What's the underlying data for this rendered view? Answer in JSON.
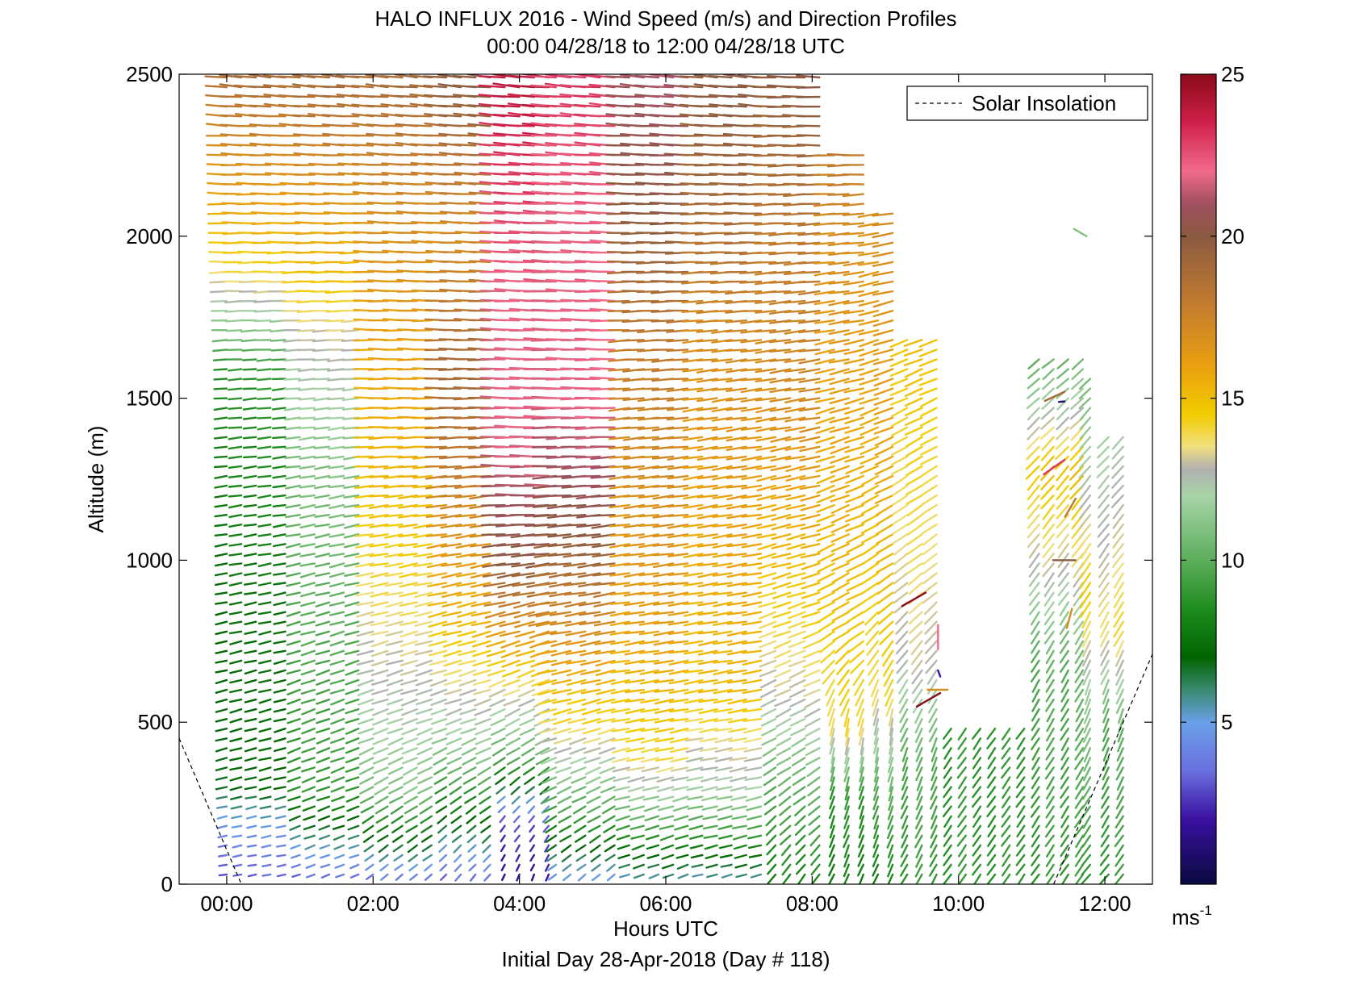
{
  "chart_data": {
    "type": "wind_barb_profile",
    "title": "HALO INFLUX 2016 - Wind Speed (m/s) and Direction Profiles",
    "subtitle": "00:00 04/28/18 to 12:00 04/28/18  UTC",
    "xlabel": "Hours UTC",
    "xlabel2": "Initial Day 28-Apr-2018 (Day # 118)",
    "ylabel": "Altitude (m)",
    "xlim": [
      -0.65,
      12.65
    ],
    "ylim": [
      0,
      2500
    ],
    "x_ticks": [
      {
        "value": 0,
        "label": "00:00"
      },
      {
        "value": 2,
        "label": "02:00"
      },
      {
        "value": 4,
        "label": "04:00"
      },
      {
        "value": 6,
        "label": "06:00"
      },
      {
        "value": 8,
        "label": "08:00"
      },
      {
        "value": 10,
        "label": "10:00"
      },
      {
        "value": 12,
        "label": "12:00"
      }
    ],
    "y_ticks": [
      0,
      500,
      1000,
      1500,
      2000,
      2500
    ],
    "colorbar": {
      "range": [
        0,
        25
      ],
      "ticks": [
        5,
        10,
        15,
        20,
        25
      ],
      "unit_label": "ms",
      "unit_exponent": "-1",
      "stops": [
        {
          "v": 0,
          "color": "#0a0a40"
        },
        {
          "v": 2,
          "color": "#3a10a0"
        },
        {
          "v": 3.5,
          "color": "#6a70e0"
        },
        {
          "v": 5,
          "color": "#6aa0e8"
        },
        {
          "v": 6,
          "color": "#3a8a70"
        },
        {
          "v": 7,
          "color": "#006400"
        },
        {
          "v": 8.5,
          "color": "#1e8c1e"
        },
        {
          "v": 10,
          "color": "#5cae5c"
        },
        {
          "v": 12,
          "color": "#a8d4a8"
        },
        {
          "v": 12.8,
          "color": "#b0b0b0"
        },
        {
          "v": 13.5,
          "color": "#f0e080"
        },
        {
          "v": 14.5,
          "color": "#f2cc00"
        },
        {
          "v": 16,
          "color": "#eaa010"
        },
        {
          "v": 18,
          "color": "#c07a30"
        },
        {
          "v": 20,
          "color": "#8a5a40"
        },
        {
          "v": 21,
          "color": "#a05060"
        },
        {
          "v": 22,
          "color": "#f06a8a"
        },
        {
          "v": 23.5,
          "color": "#d0204a"
        },
        {
          "v": 25,
          "color": "#8a0a1a"
        }
      ]
    },
    "legend": {
      "position": "top-right",
      "entries": [
        {
          "label": "Solar Insolation",
          "style": "dashed",
          "color": "#000000"
        }
      ]
    },
    "series": [
      {
        "name": "Solar Insolation",
        "x": [
          -0.65,
          0.2
        ],
        "y": [
          450,
          0
        ]
      },
      {
        "name": "Solar Insolation",
        "x": [
          11.3,
          12.65
        ],
        "y": [
          0,
          710
        ]
      }
    ],
    "profiles_note": "Wind barbs plotted at ~10 minute intervals every 30 m; length/direction show wind, color shows speed (m/s).",
    "profiles": [
      {
        "t": 0.0,
        "top": 2500,
        "speed": [
          [
            0,
            3
          ],
          [
            60,
            3.5
          ],
          [
            200,
            5
          ],
          [
            300,
            7
          ],
          [
            900,
            7.5
          ],
          [
            1600,
            9
          ],
          [
            1700,
            11
          ],
          [
            1900,
            14
          ],
          [
            2100,
            16
          ],
          [
            2400,
            18
          ],
          [
            2500,
            19
          ]
        ],
        "dir": [
          [
            0,
            260
          ],
          [
            500,
            255
          ],
          [
            1500,
            265
          ],
          [
            2500,
            275
          ]
        ]
      },
      {
        "t": 1.0,
        "top": 2500,
        "speed": [
          [
            0,
            3
          ],
          [
            100,
            5
          ],
          [
            300,
            9
          ],
          [
            900,
            10
          ],
          [
            1300,
            11
          ],
          [
            1500,
            12
          ],
          [
            1700,
            13
          ],
          [
            1900,
            15
          ],
          [
            2200,
            17
          ],
          [
            2500,
            19
          ]
        ],
        "dir": [
          [
            0,
            250
          ],
          [
            500,
            250
          ],
          [
            1500,
            265
          ],
          [
            2500,
            275
          ]
        ]
      },
      {
        "t": 2.0,
        "top": 2500,
        "speed": [
          [
            0,
            3
          ],
          [
            100,
            6
          ],
          [
            300,
            11
          ],
          [
            700,
            13
          ],
          [
            1200,
            15
          ],
          [
            1700,
            16
          ],
          [
            2100,
            17
          ],
          [
            2500,
            19
          ]
        ],
        "dir": [
          [
            0,
            230
          ],
          [
            500,
            250
          ],
          [
            1500,
            270
          ],
          [
            2500,
            275
          ]
        ]
      },
      {
        "t": 3.0,
        "top": 2500,
        "speed": [
          [
            0,
            3
          ],
          [
            150,
            6
          ],
          [
            400,
            11
          ],
          [
            800,
            15
          ],
          [
            1300,
            18
          ],
          [
            1600,
            19
          ],
          [
            2000,
            17
          ],
          [
            2500,
            20
          ]
        ],
        "dir": [
          [
            0,
            220
          ],
          [
            500,
            250
          ],
          [
            1500,
            270
          ],
          [
            2500,
            275
          ]
        ]
      },
      {
        "t": 3.8,
        "top": 2500,
        "speed": [
          [
            0,
            1.5
          ],
          [
            200,
            3
          ],
          [
            400,
            10
          ],
          [
            700,
            15
          ],
          [
            1000,
            20
          ],
          [
            1400,
            22
          ],
          [
            1800,
            22
          ],
          [
            2200,
            23
          ],
          [
            2500,
            24
          ]
        ],
        "dir": [
          [
            0,
            200
          ],
          [
            400,
            240
          ],
          [
            1200,
            270
          ],
          [
            2500,
            275
          ]
        ]
      },
      {
        "t": 4.5,
        "top": 2500,
        "speed": [
          [
            0,
            4
          ],
          [
            200,
            9
          ],
          [
            500,
            14
          ],
          [
            800,
            17
          ],
          [
            1100,
            20
          ],
          [
            1500,
            22
          ],
          [
            2000,
            22
          ],
          [
            2500,
            23
          ]
        ],
        "dir": [
          [
            0,
            230
          ],
          [
            500,
            255
          ],
          [
            1500,
            270
          ],
          [
            2500,
            275
          ]
        ]
      },
      {
        "t": 5.5,
        "top": 2500,
        "speed": [
          [
            0,
            5
          ],
          [
            200,
            10
          ],
          [
            400,
            14
          ],
          [
            800,
            16
          ],
          [
            1300,
            17
          ],
          [
            1700,
            18
          ],
          [
            2100,
            20
          ],
          [
            2500,
            21
          ]
        ],
        "dir": [
          [
            0,
            250
          ],
          [
            500,
            260
          ],
          [
            1500,
            265
          ],
          [
            2500,
            275
          ]
        ]
      },
      {
        "t": 6.5,
        "top": 2500,
        "speed": [
          [
            0,
            5
          ],
          [
            150,
            9
          ],
          [
            300,
            12
          ],
          [
            600,
            15
          ],
          [
            1200,
            16
          ],
          [
            1700,
            17
          ],
          [
            2100,
            19
          ],
          [
            2500,
            20
          ]
        ],
        "dir": [
          [
            0,
            255
          ],
          [
            500,
            260
          ],
          [
            1500,
            262
          ],
          [
            2500,
            275
          ]
        ]
      },
      {
        "t": 7.5,
        "top": 2500,
        "speed": [
          [
            0,
            8
          ],
          [
            300,
            10
          ],
          [
            600,
            13
          ],
          [
            1000,
            15
          ],
          [
            1500,
            17
          ],
          [
            2000,
            18
          ],
          [
            2500,
            20
          ]
        ],
        "dir": [
          [
            0,
            215
          ],
          [
            400,
            240
          ],
          [
            1000,
            255
          ],
          [
            2500,
            272
          ]
        ]
      },
      {
        "t": 8.3,
        "top": 2260,
        "speed": [
          [
            0,
            8
          ],
          [
            300,
            9
          ],
          [
            500,
            14
          ],
          [
            900,
            15
          ],
          [
            1500,
            16
          ],
          [
            2000,
            17
          ],
          [
            2260,
            18
          ]
        ],
        "dir": [
          [
            0,
            205
          ],
          [
            500,
            190
          ],
          [
            800,
            240
          ],
          [
            1500,
            255
          ],
          [
            2260,
            270
          ]
        ]
      },
      {
        "t": 8.9,
        "top": 2080,
        "speed": [
          [
            0,
            8
          ],
          [
            300,
            10
          ],
          [
            600,
            14
          ],
          [
            1000,
            15
          ],
          [
            1500,
            16
          ],
          [
            2080,
            17
          ]
        ],
        "dir": [
          [
            0,
            205
          ],
          [
            500,
            190
          ],
          [
            900,
            235
          ],
          [
            1500,
            250
          ],
          [
            2080,
            262
          ]
        ]
      },
      {
        "t": 9.3,
        "top": 1680,
        "speed": [
          [
            0,
            9
          ],
          [
            400,
            10
          ],
          [
            700,
            13
          ],
          [
            1200,
            14
          ],
          [
            1680,
            15
          ]
        ],
        "dir": [
          [
            0,
            210
          ],
          [
            400,
            200
          ],
          [
            900,
            230
          ],
          [
            1680,
            250
          ]
        ]
      },
      {
        "t": 9.9,
        "top": 480,
        "speed": [
          [
            0,
            9
          ],
          [
            480,
            9
          ]
        ],
        "dir": [
          [
            0,
            215
          ],
          [
            480,
            215
          ]
        ]
      },
      {
        "t": 10.5,
        "top": 500,
        "speed": [
          [
            0,
            9
          ],
          [
            500,
            9
          ]
        ],
        "dir": [
          [
            0,
            215
          ],
          [
            500,
            215
          ]
        ]
      },
      {
        "t": 11.1,
        "top": 1640,
        "speed": [
          [
            0,
            9
          ],
          [
            700,
            10
          ],
          [
            1000,
            13
          ],
          [
            1300,
            15
          ],
          [
            1500,
            12
          ],
          [
            1640,
            10
          ]
        ],
        "dir": [
          [
            0,
            215
          ],
          [
            600,
            210
          ],
          [
            1200,
            220
          ],
          [
            1640,
            230
          ]
        ]
      },
      {
        "t": 11.8,
        "top": 1560,
        "speed": [
          [
            0,
            9
          ],
          [
            600,
            12
          ],
          [
            900,
            15
          ],
          [
            1200,
            13
          ],
          [
            1560,
            11
          ]
        ],
        "dir": [
          [
            0,
            220
          ],
          [
            600,
            200
          ],
          [
            1000,
            215
          ],
          [
            1560,
            225
          ]
        ]
      },
      {
        "t": 12.05,
        "top": 1400,
        "speed": [
          [
            0,
            9
          ],
          [
            500,
            10
          ],
          [
            800,
            14
          ],
          [
            1100,
            13
          ],
          [
            1400,
            12
          ]
        ],
        "dir": [
          [
            0,
            220
          ],
          [
            500,
            200
          ],
          [
            1000,
            215
          ],
          [
            1400,
            225
          ]
        ]
      }
    ],
    "sparse_barbs": [
      {
        "x": 9.55,
        "y": 900,
        "speed": 25,
        "dir": 240
      },
      {
        "x": 9.72,
        "y": 800,
        "speed": 22,
        "dir": 180
      },
      {
        "x": 9.72,
        "y": 660,
        "speed": 2,
        "dir": 160
      },
      {
        "x": 9.85,
        "y": 600,
        "speed": 17,
        "dir": 270
      },
      {
        "x": 9.75,
        "y": 590,
        "speed": 25,
        "dir": 240
      },
      {
        "x": 11.45,
        "y": 1520,
        "speed": 19,
        "dir": 245
      },
      {
        "x": 11.45,
        "y": 1490,
        "speed": 1,
        "dir": 265
      },
      {
        "x": 11.45,
        "y": 1310,
        "speed": 23,
        "dir": 235
      },
      {
        "x": 11.6,
        "y": 1190,
        "speed": 18,
        "dir": 210
      },
      {
        "x": 11.6,
        "y": 1000,
        "speed": 20,
        "dir": 270
      },
      {
        "x": 11.55,
        "y": 850,
        "speed": 17,
        "dir": 195
      },
      {
        "x": 11.75,
        "y": 2000,
        "speed": 11,
        "dir": 300
      }
    ]
  }
}
